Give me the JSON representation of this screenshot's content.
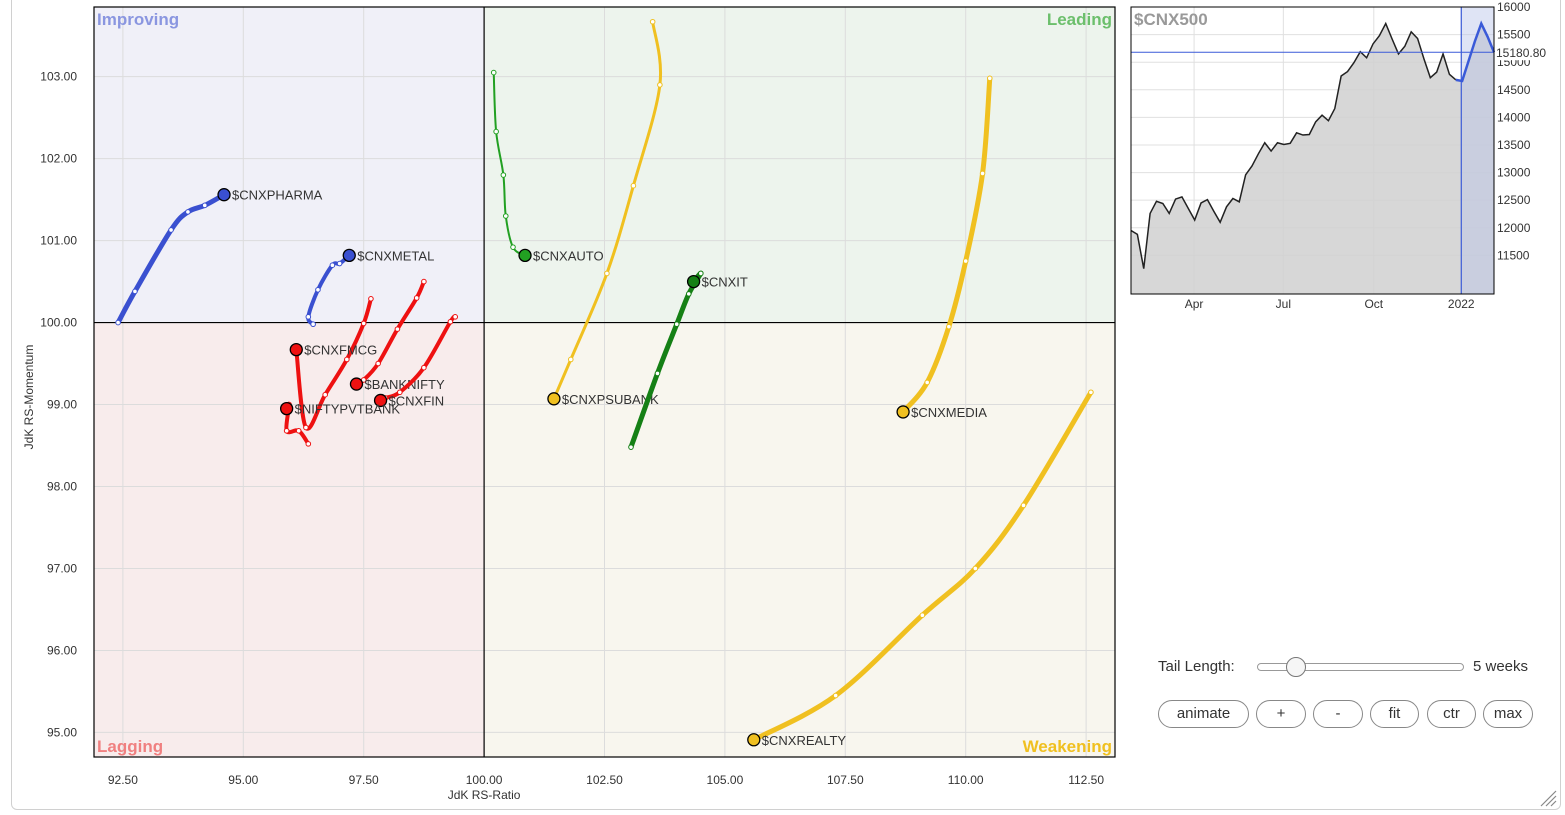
{
  "chart_data": [
    {
      "type": "scatter",
      "xlabel": "JdK RS-Ratio",
      "ylabel": "JdK RS-Momentum",
      "xlim": [
        91.9,
        113.1
      ],
      "ylim": [
        94.7,
        103.85
      ],
      "xticks": [
        92.5,
        95.0,
        97.5,
        100.0,
        102.5,
        105.0,
        107.5,
        110.0,
        112.5
      ],
      "xtick_labels": [
        "92.50",
        "95.00",
        "97.50",
        "100.00",
        "102.50",
        "105.00",
        "107.50",
        "110.00",
        "112.50"
      ],
      "yticks": [
        95,
        96,
        97,
        98,
        99,
        100,
        101,
        102,
        103
      ],
      "ytick_labels": [
        "95.00",
        "96.00",
        "97.00",
        "98.00",
        "99.00",
        "100.00",
        "101.00",
        "102.00",
        "103.00"
      ],
      "grid": true,
      "quadrants": [
        {
          "name": "Improving",
          "color": "#8a96e0",
          "bg": "#f0f0f8"
        },
        {
          "name": "Leading",
          "color": "#6cbf6c",
          "bg": "#edf4ed"
        },
        {
          "name": "Lagging",
          "color": "#f08080",
          "bg": "#f8ecec"
        },
        {
          "name": "Weakening",
          "color": "#f0c020",
          "bg": "#f8f6ee"
        }
      ],
      "series": [
        {
          "name": "$CNXPHARMA",
          "color": "#3a50d0",
          "width": 5,
          "x": [
            92.4,
            92.75,
            93.5,
            93.85,
            94.2,
            94.6
          ],
          "y": [
            100.0,
            100.38,
            101.13,
            101.35,
            101.43,
            101.56
          ]
        },
        {
          "name": "$CNXMETAL",
          "color": "#3a50d0",
          "width": 4,
          "x": [
            96.45,
            96.35,
            96.55,
            96.85,
            97.0,
            97.2
          ],
          "y": [
            99.98,
            100.07,
            100.4,
            100.7,
            100.72,
            100.82
          ]
        },
        {
          "name": "$CNXFMCG",
          "color": "#ee1111",
          "width": 4,
          "x": [
            97.65,
            97.5,
            97.15,
            96.7,
            96.3,
            96.1
          ],
          "y": [
            100.29,
            99.99,
            99.55,
            99.12,
            98.72,
            99.67
          ]
        },
        {
          "name": "$BANKNIFTY",
          "color": "#ee1111",
          "width": 4,
          "x": [
            98.75,
            98.6,
            98.2,
            97.8,
            97.5,
            97.35
          ],
          "y": [
            100.5,
            100.3,
            99.92,
            99.5,
            99.3,
            99.25
          ]
        },
        {
          "name": "$CNXFIN",
          "color": "#ee1111",
          "width": 4,
          "x": [
            99.4,
            99.3,
            98.75,
            98.25,
            97.95,
            97.85
          ],
          "y": [
            100.07,
            100.01,
            99.45,
            99.15,
            99.08,
            99.05
          ]
        },
        {
          "name": "$NIFTYPVTBANK",
          "color": "#ee1111",
          "width": 4,
          "x": [
            96.35,
            96.15,
            95.9,
            95.95,
            95.85,
            95.9
          ],
          "y": [
            98.52,
            98.68,
            98.68,
            99.0,
            98.92,
            98.95
          ]
        },
        {
          "name": "$CNXAUTO",
          "color": "#22a022",
          "width": 2,
          "x": [
            100.2,
            100.25,
            100.4,
            100.45,
            100.6,
            100.85
          ],
          "y": [
            103.05,
            102.33,
            101.8,
            101.3,
            100.92,
            100.82
          ]
        },
        {
          "name": "$CNXPSUBANK",
          "color": "#f0c020",
          "width": 3,
          "x": [
            103.5,
            103.65,
            103.1,
            102.55,
            101.8,
            101.45
          ],
          "y": [
            103.67,
            102.9,
            101.67,
            100.6,
            99.55,
            99.07
          ]
        },
        {
          "name": "$CNXIT",
          "color": "#158015",
          "width": 5,
          "x": [
            103.05,
            103.6,
            104.0,
            104.25,
            104.5,
            104.35
          ],
          "y": [
            98.48,
            99.38,
            99.98,
            100.35,
            100.6,
            100.5
          ]
        },
        {
          "name": "$CNXMEDIA",
          "color": "#f0c020",
          "width": 5,
          "x": [
            110.5,
            110.35,
            110.0,
            109.65,
            109.2,
            108.7
          ],
          "y": [
            102.98,
            101.82,
            100.75,
            99.95,
            99.27,
            98.91
          ]
        },
        {
          "name": "$CNXREALTY",
          "color": "#f0c020",
          "width": 5,
          "x": [
            112.6,
            111.2,
            110.2,
            109.1,
            107.3,
            105.6
          ],
          "y": [
            99.15,
            97.77,
            97.0,
            96.43,
            95.45,
            94.91
          ]
        }
      ]
    },
    {
      "type": "area",
      "title": "$CNX500",
      "last_value_label": "15180.80",
      "last_value": 15180.8,
      "ylim": [
        10800,
        16000
      ],
      "yticks": [
        11500,
        12000,
        12500,
        13000,
        13500,
        14000,
        14500,
        15000,
        15500,
        16000
      ],
      "ytick_labels": [
        "11500",
        "12000",
        "12500",
        "13000",
        "13500",
        "14000",
        "14500",
        "15000",
        "15500",
        "16000"
      ],
      "xticks": [
        10.6,
        25.6,
        40.8,
        55.5
      ],
      "xtick_labels": [
        "Apr",
        "Jul",
        "Oct",
        "2022"
      ],
      "xlim": [
        0,
        61
      ],
      "highlight_start": 55.5,
      "line_color": "#222222",
      "highlight_color": "#3a5ad8",
      "values": [
        11950,
        11880,
        11260,
        12260,
        12480,
        12440,
        12260,
        12520,
        12560,
        12350,
        12140,
        12450,
        12510,
        12300,
        12100,
        12380,
        12530,
        12470,
        12960,
        13120,
        13340,
        13540,
        13390,
        13540,
        13510,
        13530,
        13720,
        13680,
        13690,
        13920,
        14040,
        13940,
        14160,
        14750,
        14830,
        14990,
        15190,
        15080,
        15330,
        15480,
        15700,
        15420,
        15150,
        15290,
        15550,
        15430,
        15060,
        14720,
        14820,
        15150,
        14780,
        14680,
        14660,
        15020,
        15380,
        15700,
        15460,
        15180.8
      ]
    }
  ],
  "controls": {
    "tail_label": "Tail Length:",
    "tail_weeks": 5,
    "tail_value_label": "5 weeks",
    "buttons": {
      "animate": "animate",
      "zoom_in": "+",
      "zoom_out": "-",
      "fit": "fit",
      "ctr": "ctr",
      "max": "max"
    }
  }
}
